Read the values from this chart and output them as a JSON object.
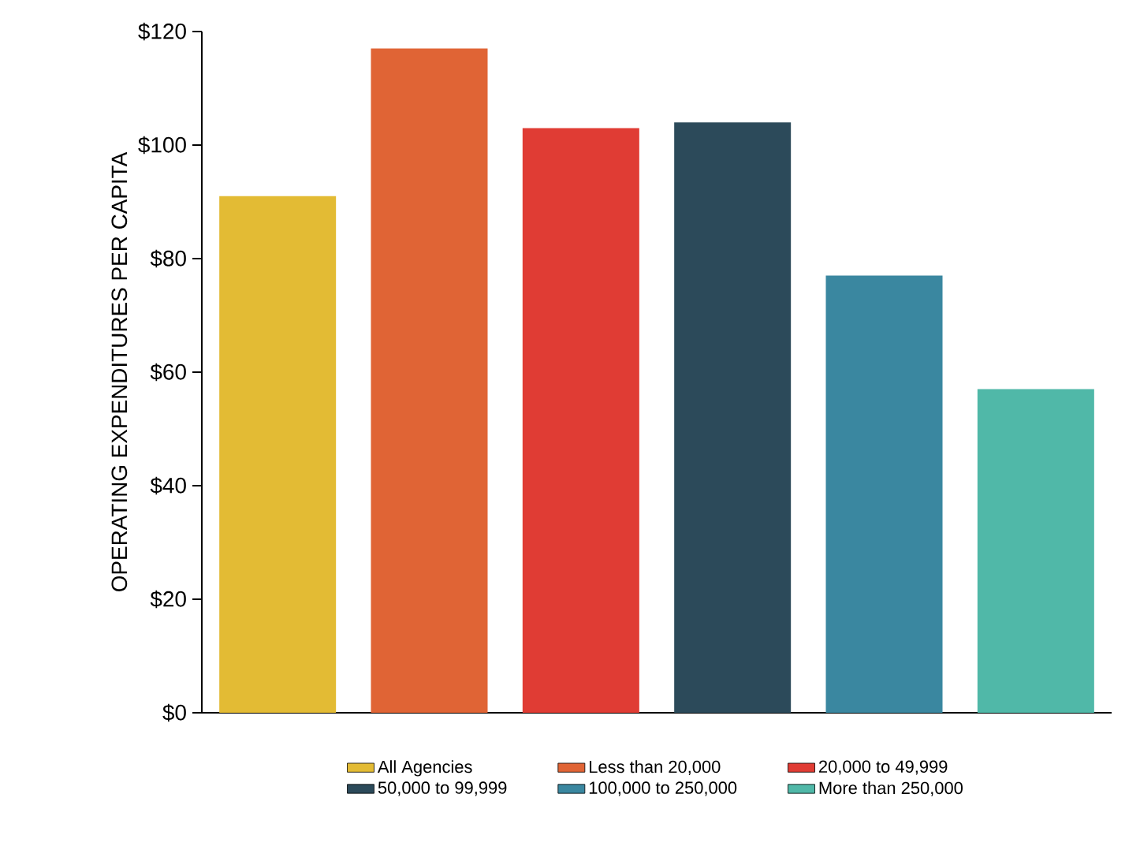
{
  "chart_data": {
    "type": "bar",
    "ylabel": "OPERATING EXPENDITURES PER CAPITA",
    "categories": [
      null,
      null,
      null,
      null,
      null,
      null
    ],
    "series": [
      {
        "name": "All Agencies",
        "color": "#e3bb34",
        "values": [
          91,
          null,
          null,
          null,
          null,
          null
        ]
      },
      {
        "name": "Less than 20,000",
        "color": "#e06435",
        "values": [
          null,
          117,
          null,
          null,
          null,
          null
        ]
      },
      {
        "name": "20,000 to 49,999",
        "color": "#e03c34",
        "values": [
          null,
          null,
          103,
          null,
          null,
          null
        ]
      },
      {
        "name": "50,000 to 99,999",
        "color": "#2c4a5a",
        "values": [
          null,
          null,
          null,
          104,
          null,
          null
        ]
      },
      {
        "name": "100,000 to 250,000",
        "color": "#3a87a0",
        "values": [
          null,
          null,
          null,
          null,
          77,
          null
        ]
      },
      {
        "name": "More than 250,000",
        "color": "#50b8a8",
        "values": [
          null,
          null,
          null,
          null,
          null,
          57
        ]
      }
    ],
    "ylim": [
      0,
      120
    ],
    "yticks": [
      {
        "value": 0,
        "label": "$0"
      },
      {
        "value": 20,
        "label": "$20"
      },
      {
        "value": 40,
        "label": "$40"
      },
      {
        "value": 60,
        "label": "$60"
      },
      {
        "value": 80,
        "label": "$80"
      },
      {
        "value": 100,
        "label": "$100"
      },
      {
        "value": 120,
        "label": "$120"
      }
    ],
    "legend": "bottom",
    "grid": false
  }
}
